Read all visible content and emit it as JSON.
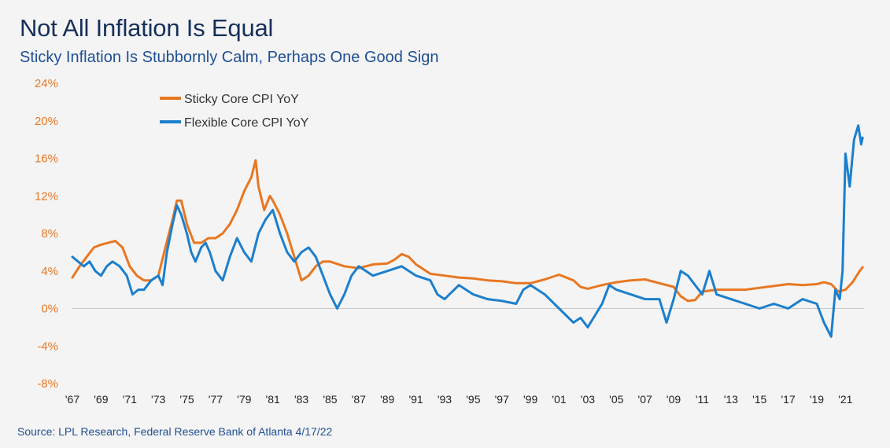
{
  "header": {
    "title": "Not All Inflation Is Equal",
    "subtitle": "Sticky Inflation Is Stubbornly Calm, Perhaps One Good Sign"
  },
  "footer": {
    "source": "Source: LPL Research, Federal Reserve Bank of Atlanta 4/17/22"
  },
  "colors": {
    "sticky": "#e87722",
    "flexible": "#1c7fcc",
    "ytick": "#e87722",
    "zeroline": "#c8c8c8"
  },
  "chart_data": {
    "type": "line",
    "title": "Not All Inflation Is Equal",
    "subtitle": "Sticky Inflation Is Stubbornly Calm, Perhaps One Good Sign",
    "xlabel": "",
    "ylabel": "",
    "xlim": [
      1967,
      2022.3
    ],
    "ylim": [
      -8,
      24
    ],
    "grid": false,
    "legend_position": "top-left",
    "yticks": [
      -8,
      -4,
      0,
      4,
      8,
      12,
      16,
      20,
      24
    ],
    "ytick_labels": [
      "-8%",
      "-4%",
      "0%",
      "4%",
      "8%",
      "12%",
      "16%",
      "20%",
      "24%"
    ],
    "xticks": [
      1967,
      1969,
      1971,
      1973,
      1975,
      1977,
      1979,
      1981,
      1983,
      1985,
      1987,
      1989,
      1991,
      1993,
      1995,
      1997,
      1999,
      2001,
      2003,
      2005,
      2007,
      2009,
      2011,
      2013,
      2015,
      2017,
      2019,
      2021
    ],
    "xtick_labels": [
      "'67",
      "'69",
      "'71",
      "'73",
      "'75",
      "'77",
      "'79",
      "'81",
      "'83",
      "'85",
      "'87",
      "'89",
      "'91",
      "'93",
      "'95",
      "'97",
      "'99",
      "'01",
      "'03",
      "'05",
      "'07",
      "'09",
      "'11",
      "'13",
      "'15",
      "'17",
      "'19",
      "'21"
    ],
    "series": [
      {
        "name": "Sticky Core CPI YoY",
        "color": "#e87722",
        "x": [
          1967,
          1967.5,
          1968,
          1968.5,
          1969,
          1969.5,
          1970,
          1970.5,
          1971,
          1971.5,
          1972,
          1972.5,
          1973,
          1973.5,
          1974,
          1974.3,
          1974.6,
          1975,
          1975.5,
          1976,
          1976.5,
          1977,
          1977.5,
          1978,
          1978.5,
          1979,
          1979.5,
          1979.8,
          1980,
          1980.4,
          1980.8,
          1981,
          1981.5,
          1982,
          1982.5,
          1983,
          1983.5,
          1984,
          1984.5,
          1985,
          1986,
          1987,
          1988,
          1989,
          1989.5,
          1990,
          1990.5,
          1991,
          1992,
          1993,
          1994,
          1995,
          1996,
          1997,
          1998,
          1999,
          2000,
          2001,
          2002,
          2002.5,
          2003,
          2004,
          2005,
          2006,
          2007,
          2008,
          2009,
          2009.5,
          2010,
          2010.5,
          2011,
          2012,
          2013,
          2014,
          2015,
          2016,
          2017,
          2018,
          2019,
          2019.5,
          2020,
          2020.5,
          2021,
          2021.5,
          2022,
          2022.2
        ],
        "values": [
          3.3,
          4.5,
          5.5,
          6.5,
          6.8,
          7.0,
          7.2,
          6.5,
          4.5,
          3.5,
          3.0,
          3.0,
          3.5,
          6.5,
          9.5,
          11.5,
          11.5,
          9.0,
          7.0,
          7.0,
          7.5,
          7.5,
          8.0,
          9.0,
          10.5,
          12.5,
          14.0,
          15.8,
          13.0,
          10.5,
          12.0,
          11.5,
          10.0,
          8.0,
          5.5,
          3.0,
          3.5,
          4.5,
          5.0,
          5.0,
          4.5,
          4.3,
          4.7,
          4.8,
          5.2,
          5.8,
          5.5,
          4.7,
          3.7,
          3.5,
          3.3,
          3.2,
          3.0,
          2.9,
          2.7,
          2.7,
          3.1,
          3.6,
          3.0,
          2.3,
          2.1,
          2.5,
          2.8,
          3.0,
          3.1,
          2.7,
          2.3,
          1.3,
          0.8,
          0.9,
          1.8,
          2.0,
          2.0,
          2.0,
          2.2,
          2.4,
          2.6,
          2.5,
          2.6,
          2.8,
          2.6,
          1.8,
          2.0,
          2.8,
          4.0,
          4.4
        ]
      },
      {
        "name": "Flexible Core CPI YoY",
        "color": "#1c7fcc",
        "x": [
          1967,
          1967.4,
          1967.8,
          1968.2,
          1968.6,
          1969,
          1969.4,
          1969.8,
          1970.3,
          1970.8,
          1971.2,
          1971.6,
          1972,
          1972.5,
          1973,
          1973.3,
          1973.6,
          1974,
          1974.3,
          1974.6,
          1975,
          1975.3,
          1975.6,
          1976,
          1976.3,
          1976.6,
          1977,
          1977.5,
          1978,
          1978.5,
          1979,
          1979.5,
          1980,
          1980.5,
          1981,
          1981.5,
          1982,
          1982.5,
          1983,
          1983.5,
          1984,
          1984.5,
          1985,
          1985.5,
          1986,
          1986.5,
          1987,
          1988,
          1989,
          1990,
          1990.5,
          1991,
          1992,
          1992.5,
          1993,
          1994,
          1995,
          1996,
          1997,
          1998,
          1998.5,
          1999,
          2000,
          2001,
          2002,
          2002.5,
          2003,
          2004,
          2004.5,
          2005,
          2006,
          2007,
          2008,
          2008.5,
          2009,
          2009.5,
          2010,
          2011,
          2011.5,
          2012,
          2013,
          2014,
          2015,
          2016,
          2017,
          2018,
          2019,
          2019.5,
          2020,
          2020.3,
          2020.6,
          2020.8,
          2021,
          2021.3,
          2021.6,
          2021.9,
          2022.1,
          2022.2
        ],
        "values": [
          5.5,
          5.0,
          4.5,
          5.0,
          4.0,
          3.5,
          4.5,
          5.0,
          4.5,
          3.5,
          1.5,
          2.0,
          2.0,
          3.0,
          3.5,
          2.5,
          6.0,
          9.0,
          11.0,
          10.0,
          8.0,
          6.0,
          5.0,
          6.5,
          7.0,
          6.0,
          4.0,
          3.0,
          5.5,
          7.5,
          6.0,
          5.0,
          8.0,
          9.5,
          10.5,
          8.0,
          6.0,
          5.0,
          6.0,
          6.5,
          5.5,
          3.5,
          1.5,
          0.0,
          1.5,
          3.5,
          4.5,
          3.5,
          4.0,
          4.5,
          4.0,
          3.5,
          3.0,
          1.5,
          1.0,
          2.5,
          1.5,
          1.0,
          0.8,
          0.5,
          2.0,
          2.5,
          1.5,
          0.0,
          -1.5,
          -1.0,
          -2.0,
          0.5,
          2.5,
          2.0,
          1.5,
          1.0,
          1.0,
          -1.5,
          1.0,
          4.0,
          3.5,
          1.5,
          4.0,
          1.5,
          1.0,
          0.5,
          0.0,
          0.5,
          0.0,
          1.0,
          0.5,
          -1.5,
          -3.0,
          2.0,
          1.0,
          4.0,
          16.5,
          13.0,
          18.0,
          19.5,
          17.5,
          18.2
        ]
      }
    ]
  }
}
